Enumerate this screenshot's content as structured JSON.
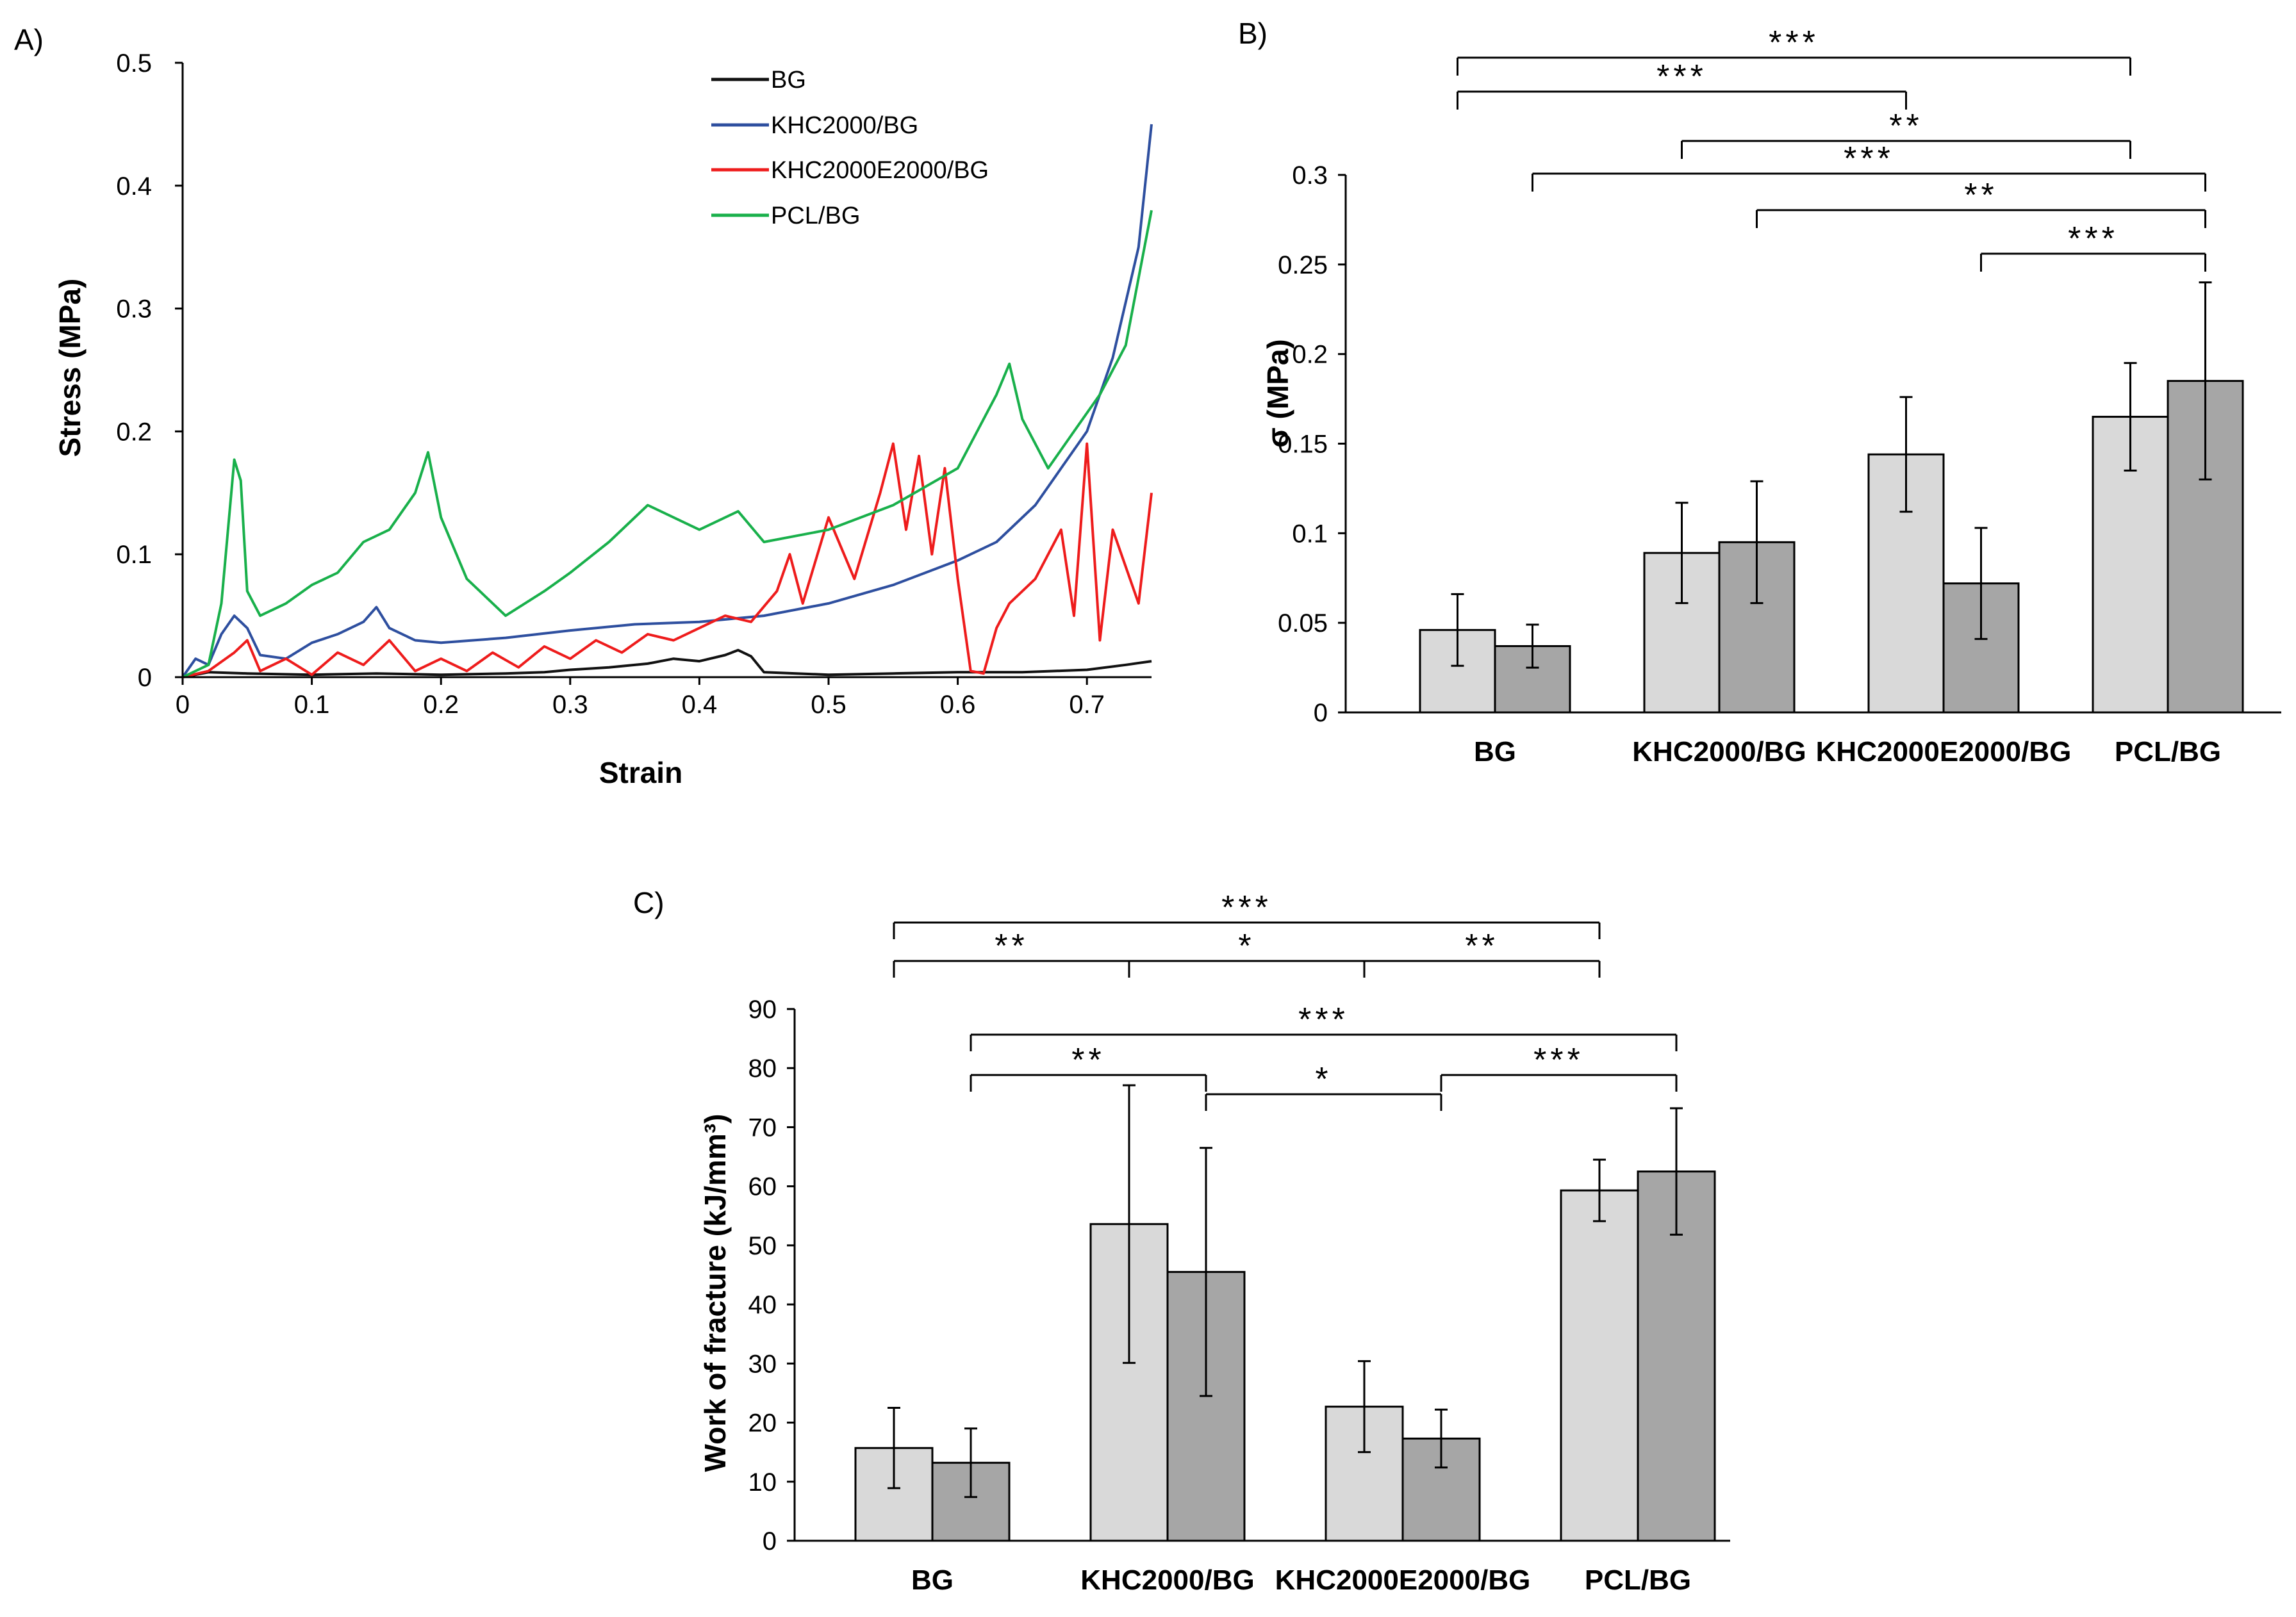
{
  "colors": {
    "bg_black": "#111111",
    "blue": "#2e4f9f",
    "red": "#ee1c1c",
    "green": "#19b04b",
    "bar_light": "#d9d9d9",
    "bar_dark": "#a6a6a6"
  },
  "chart_data": [
    {
      "id": "A",
      "panel_label": "A)",
      "type": "line",
      "xlabel": "Strain",
      "ylabel": "Stress (MPa)",
      "xlim": [
        0,
        0.75
      ],
      "ylim": [
        0,
        0.5
      ],
      "xticks": [
        "0",
        "0.1",
        "0.2",
        "0.3",
        "0.4",
        "0.5",
        "0.6",
        "0.7"
      ],
      "yticks": [
        "0",
        "0.1",
        "0.2",
        "0.3",
        "0.4",
        "0.5"
      ],
      "legend_position": "top-right",
      "series": [
        {
          "name": "BG",
          "color_key": "bg_black",
          "x": [
            0,
            0.02,
            0.05,
            0.1,
            0.15,
            0.2,
            0.25,
            0.28,
            0.3,
            0.33,
            0.36,
            0.38,
            0.4,
            0.42,
            0.43,
            0.44,
            0.45,
            0.5,
            0.55,
            0.6,
            0.65,
            0.7,
            0.73,
            0.75
          ],
          "y": [
            0,
            0.004,
            0.003,
            0.002,
            0.003,
            0.002,
            0.003,
            0.004,
            0.006,
            0.008,
            0.011,
            0.015,
            0.013,
            0.018,
            0.022,
            0.017,
            0.004,
            0.002,
            0.003,
            0.004,
            0.004,
            0.006,
            0.01,
            0.013
          ]
        },
        {
          "name": "KHC2000/BG",
          "color_key": "blue",
          "x": [
            0,
            0.01,
            0.02,
            0.03,
            0.04,
            0.05,
            0.06,
            0.08,
            0.1,
            0.12,
            0.14,
            0.15,
            0.16,
            0.18,
            0.2,
            0.25,
            0.3,
            0.35,
            0.4,
            0.45,
            0.5,
            0.55,
            0.6,
            0.63,
            0.66,
            0.68,
            0.7,
            0.72,
            0.74,
            0.75
          ],
          "y": [
            0,
            0.015,
            0.01,
            0.035,
            0.05,
            0.04,
            0.018,
            0.015,
            0.028,
            0.035,
            0.045,
            0.057,
            0.04,
            0.03,
            0.028,
            0.032,
            0.038,
            0.043,
            0.045,
            0.05,
            0.06,
            0.075,
            0.095,
            0.11,
            0.14,
            0.17,
            0.2,
            0.26,
            0.35,
            0.45
          ]
        },
        {
          "name": "KHC2000E2000/BG",
          "color_key": "red",
          "x": [
            0,
            0.02,
            0.04,
            0.05,
            0.06,
            0.08,
            0.1,
            0.12,
            0.14,
            0.16,
            0.18,
            0.2,
            0.22,
            0.24,
            0.26,
            0.28,
            0.3,
            0.32,
            0.34,
            0.36,
            0.38,
            0.4,
            0.42,
            0.44,
            0.46,
            0.47,
            0.48,
            0.5,
            0.52,
            0.54,
            0.55,
            0.56,
            0.57,
            0.58,
            0.59,
            0.6,
            0.61,
            0.62,
            0.63,
            0.64,
            0.66,
            0.68,
            0.69,
            0.7,
            0.71,
            0.72,
            0.74,
            0.75
          ],
          "y": [
            0,
            0.005,
            0.02,
            0.03,
            0.005,
            0.015,
            0.002,
            0.02,
            0.01,
            0.03,
            0.005,
            0.015,
            0.005,
            0.02,
            0.008,
            0.025,
            0.015,
            0.03,
            0.02,
            0.035,
            0.03,
            0.04,
            0.05,
            0.045,
            0.07,
            0.1,
            0.06,
            0.13,
            0.08,
            0.15,
            0.19,
            0.12,
            0.18,
            0.1,
            0.17,
            0.08,
            0.005,
            0.003,
            0.04,
            0.06,
            0.08,
            0.12,
            0.05,
            0.19,
            0.03,
            0.12,
            0.06,
            0.15
          ]
        },
        {
          "name": "PCL/BG",
          "color_key": "green",
          "x": [
            0,
            0.02,
            0.03,
            0.04,
            0.045,
            0.05,
            0.06,
            0.08,
            0.1,
            0.12,
            0.14,
            0.16,
            0.18,
            0.19,
            0.2,
            0.22,
            0.23,
            0.25,
            0.28,
            0.3,
            0.33,
            0.36,
            0.4,
            0.43,
            0.45,
            0.5,
            0.55,
            0.6,
            0.63,
            0.64,
            0.65,
            0.67,
            0.69,
            0.71,
            0.73,
            0.75
          ],
          "y": [
            0,
            0.01,
            0.06,
            0.177,
            0.16,
            0.07,
            0.05,
            0.06,
            0.075,
            0.085,
            0.11,
            0.12,
            0.15,
            0.183,
            0.13,
            0.08,
            0.07,
            0.05,
            0.07,
            0.085,
            0.11,
            0.14,
            0.12,
            0.135,
            0.11,
            0.12,
            0.14,
            0.17,
            0.23,
            0.255,
            0.21,
            0.17,
            0.2,
            0.23,
            0.27,
            0.38
          ]
        }
      ]
    },
    {
      "id": "B",
      "panel_label": "B)",
      "type": "bar",
      "ylabel": "σ (MPa)",
      "ylim": [
        0,
        0.3
      ],
      "yticks": [
        "0",
        "0.05",
        "0.1",
        "0.15",
        "0.2",
        "0.25",
        "0.3"
      ],
      "categories": [
        "BG",
        "KHC2000/BG",
        "KHC2000E2000/BG",
        "PCL/BG"
      ],
      "series": [
        {
          "name": "light",
          "color_key": "bar_light",
          "values": [
            0.046,
            0.089,
            0.144,
            0.165
          ],
          "errors": [
            0.02,
            0.028,
            0.032,
            0.03
          ]
        },
        {
          "name": "dark",
          "color_key": "bar_dark",
          "values": [
            0.037,
            0.095,
            0.072,
            0.185
          ],
          "errors": [
            0.012,
            0.034,
            0.031,
            0.055
          ]
        }
      ],
      "significance": [
        {
          "from": [
            0,
            0
          ],
          "to": [
            3,
            0
          ],
          "stars": "***",
          "level": 0
        },
        {
          "from": [
            0,
            0
          ],
          "to": [
            2,
            0
          ],
          "stars": "***",
          "level": 1
        },
        {
          "from": [
            1,
            0
          ],
          "to": [
            3,
            0
          ],
          "stars": "**",
          "level": 2
        },
        {
          "from": [
            0,
            1
          ],
          "to": [
            3,
            1
          ],
          "stars": "***",
          "level": 3
        },
        {
          "from": [
            1,
            1
          ],
          "to": [
            3,
            1
          ],
          "stars": "**",
          "level": 4
        },
        {
          "from": [
            2,
            1
          ],
          "to": [
            3,
            1
          ],
          "stars": "***",
          "level": 5
        }
      ]
    },
    {
      "id": "C",
      "panel_label": "C)",
      "type": "bar",
      "ylabel": "Work of fracture (kJ/mm³)",
      "ylim": [
        0,
        90
      ],
      "yticks": [
        "0",
        "10",
        "20",
        "30",
        "40",
        "50",
        "60",
        "70",
        "80",
        "90"
      ],
      "categories": [
        "BG",
        "KHC2000/BG",
        "KHC2000E2000/BG",
        "PCL/BG"
      ],
      "series": [
        {
          "name": "light",
          "color_key": "bar_light",
          "values": [
            15.7,
            53.6,
            22.7,
            59.3
          ],
          "errors": [
            6.8,
            23.5,
            7.7,
            5.2
          ]
        },
        {
          "name": "dark",
          "color_key": "bar_dark",
          "values": [
            13.2,
            45.5,
            17.3,
            62.5
          ],
          "errors": [
            5.8,
            21,
            4.9,
            10.7
          ]
        }
      ],
      "significance": [
        {
          "from": [
            0,
            0
          ],
          "to": [
            3,
            0
          ],
          "stars": "***",
          "level": 0
        },
        {
          "from": [
            0,
            0
          ],
          "to": [
            1,
            0
          ],
          "stars": "**",
          "level": 1
        },
        {
          "from": [
            1,
            0
          ],
          "to": [
            2,
            0
          ],
          "stars": "*",
          "level": 1
        },
        {
          "from": [
            2,
            0
          ],
          "to": [
            3,
            0
          ],
          "stars": "**",
          "level": 1
        },
        {
          "from": [
            0,
            1
          ],
          "to": [
            3,
            1
          ],
          "stars": "***",
          "level": 2
        },
        {
          "from": [
            0,
            1
          ],
          "to": [
            1,
            1
          ],
          "stars": "**",
          "level": 3
        },
        {
          "from": [
            1,
            1
          ],
          "to": [
            2,
            1
          ],
          "stars": "*",
          "level": 4
        },
        {
          "from": [
            2,
            1
          ],
          "to": [
            3,
            1
          ],
          "stars": "***",
          "level": 3
        }
      ]
    }
  ]
}
